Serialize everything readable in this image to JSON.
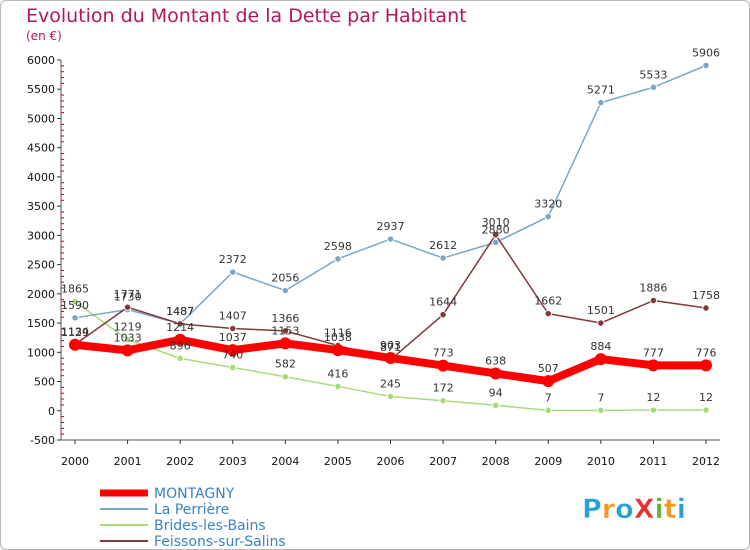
{
  "chart_data": {
    "type": "line",
    "title": "Evolution du Montant de la Dette par Habitant",
    "subtitle": "(en €)",
    "xlabel": "",
    "ylabel": "",
    "x": [
      "2000",
      "2001",
      "2002",
      "2003",
      "2004",
      "2005",
      "2006",
      "2007",
      "2008",
      "2009",
      "2010",
      "2011",
      "2012"
    ],
    "ylim": [
      -500,
      6000
    ],
    "yticks": [
      "-500",
      "0",
      "500",
      "1000",
      "1500",
      "2000",
      "2500",
      "3000",
      "3500",
      "4000",
      "4500",
      "5000",
      "5500",
      "6000"
    ],
    "grid": false,
    "legend_position": "bottom-left",
    "series": [
      {
        "name": "MONTAGNY",
        "color": "#ff0000",
        "values": [
          1129,
          1033,
          1214,
          1037,
          1153,
          1038,
          903,
          773,
          638,
          507,
          884,
          777,
          776
        ]
      },
      {
        "name": "La Perrière",
        "color": "#7aa6c8",
        "values": [
          1590,
          1730,
          1487,
          2372,
          2056,
          2598,
          2937,
          2612,
          2880,
          3320,
          5271,
          5533,
          5906
        ]
      },
      {
        "name": "Brides-les-Bains",
        "color": "#a6db7a",
        "values": [
          1865,
          1219,
          896,
          740,
          582,
          416,
          245,
          172,
          94,
          7,
          7,
          12,
          12
        ]
      },
      {
        "name": "Feissons-sur-Salins",
        "color": "#803a3a",
        "values": [
          1134,
          1771,
          1487,
          1407,
          1366,
          1116,
          871,
          1644,
          3010,
          1662,
          1501,
          1886,
          1758
        ]
      }
    ]
  },
  "branding": {
    "logo_text": "ProXiti",
    "logo_colors": [
      "#2aa0d8",
      "#f39a1e",
      "#2aa0d8",
      "#e8322e",
      "#62b33e",
      "#f39a1e",
      "#2aa0d8"
    ]
  }
}
